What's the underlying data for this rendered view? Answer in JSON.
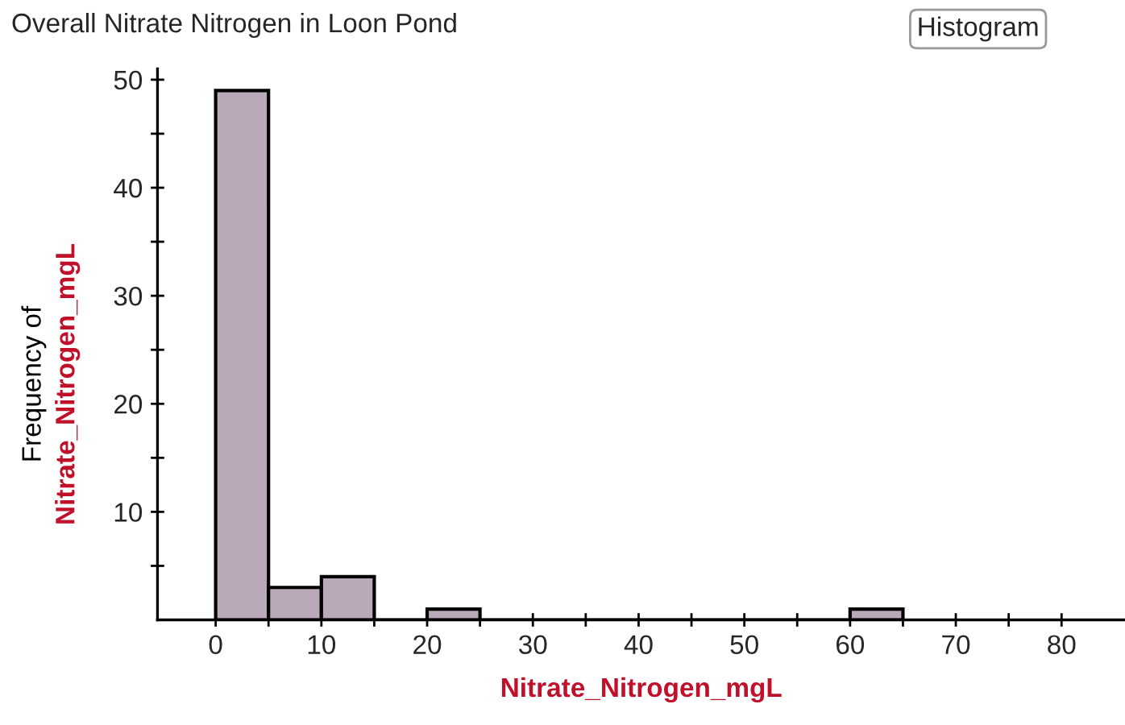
{
  "chart_data": {
    "type": "histogram",
    "title": "Overall Nitrate Nitrogen in Loon Pond",
    "xlabel": "Nitrate_Nitrogen_mgL",
    "ylabel": "Frequency of\nNitrate_Nitrogen_mgL",
    "bins": [
      0,
      5,
      10,
      15,
      20,
      25,
      30,
      35,
      40,
      45,
      50,
      55,
      60,
      65
    ],
    "values": [
      49,
      3,
      4,
      0,
      1,
      0,
      0,
      0,
      0,
      0,
      0,
      0,
      1
    ],
    "color": "#b9a9b9",
    "xlim": [
      -5.5,
      86
    ],
    "ylim": [
      0,
      51
    ],
    "xticks": [
      0,
      {
        "value": 5,
        "label": null
      },
      10,
      {
        "value": 15,
        "label": null
      },
      20,
      {
        "value": 25,
        "label": null
      },
      30,
      {
        "value": 35,
        "label": null
      },
      40,
      {
        "value": 45,
        "label": null
      },
      50,
      {
        "value": 55,
        "label": null
      },
      60,
      {
        "value": 65,
        "label": null
      },
      70,
      {
        "value": 75,
        "label": null
      },
      80
    ],
    "yticks": [
      {
        "value": 5,
        "label": null
      },
      10,
      {
        "value": 15,
        "label": null
      },
      20,
      {
        "value": 25,
        "label": null
      },
      30,
      {
        "value": 35,
        "label": null
      },
      40,
      {
        "value": 45,
        "label": null
      },
      50
    ],
    "grid": false,
    "annotations": [
      "Histogram"
    ]
  }
}
